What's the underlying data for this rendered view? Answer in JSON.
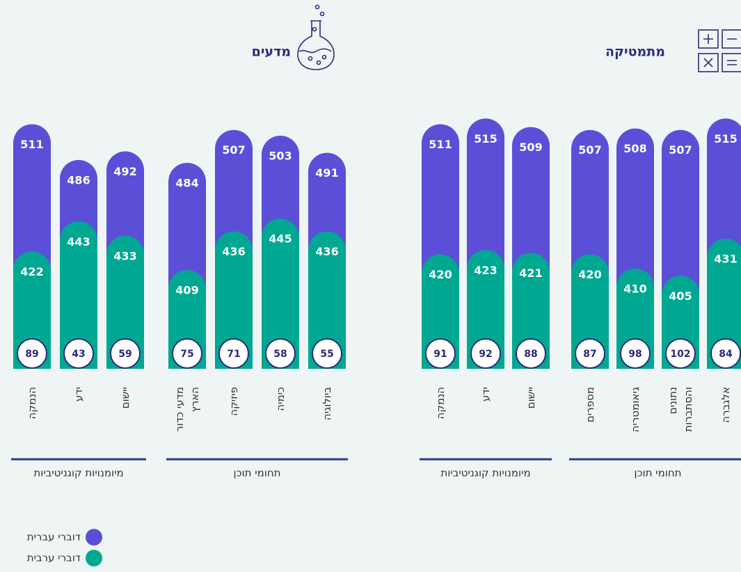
{
  "chart_data": [
    {
      "type": "bar",
      "title": "מתמטיקה",
      "groups": [
        {
          "name": "תחומי תוכן",
          "categories": [
            "אלגברה",
            "נתונים\nוהסתברות",
            "גיאומטריה",
            "מספרים"
          ]
        },
        {
          "name": "מיומנויות קוגניטיביות",
          "categories": [
            "יישום",
            "ידע",
            "הנמקה"
          ]
        }
      ],
      "series": [
        {
          "name": "דוברי עברית",
          "color": "#5b4fd8",
          "values": [
            515,
            507,
            508,
            507,
            509,
            515,
            511
          ]
        },
        {
          "name": "דוברי ערבית",
          "color": "#00a892",
          "values": [
            431,
            405,
            410,
            420,
            421,
            423,
            420
          ]
        }
      ],
      "differences": [
        84,
        102,
        98,
        87,
        88,
        92,
        91
      ],
      "ylim": [
        340,
        520
      ]
    },
    {
      "type": "bar",
      "title": "מדעים",
      "groups": [
        {
          "name": "תחומי תוכן",
          "categories": [
            "ביולוגיה",
            "כימיה",
            "פיזיקה",
            "מדעי כדור\nהארץ"
          ]
        },
        {
          "name": "מיומנויות קוגניטיביות",
          "categories": [
            "יישום",
            "ידע",
            "הנמקה"
          ]
        }
      ],
      "series": [
        {
          "name": "דוברי עברית",
          "color": "#5b4fd8",
          "values": [
            491,
            503,
            507,
            484,
            492,
            486,
            511
          ]
        },
        {
          "name": "דוברי ערבית",
          "color": "#00a892",
          "values": [
            436,
            445,
            436,
            409,
            433,
            443,
            422
          ]
        }
      ],
      "differences": [
        55,
        58,
        71,
        75,
        59,
        43,
        89
      ],
      "ylim": [
        340,
        520
      ]
    }
  ]
}
